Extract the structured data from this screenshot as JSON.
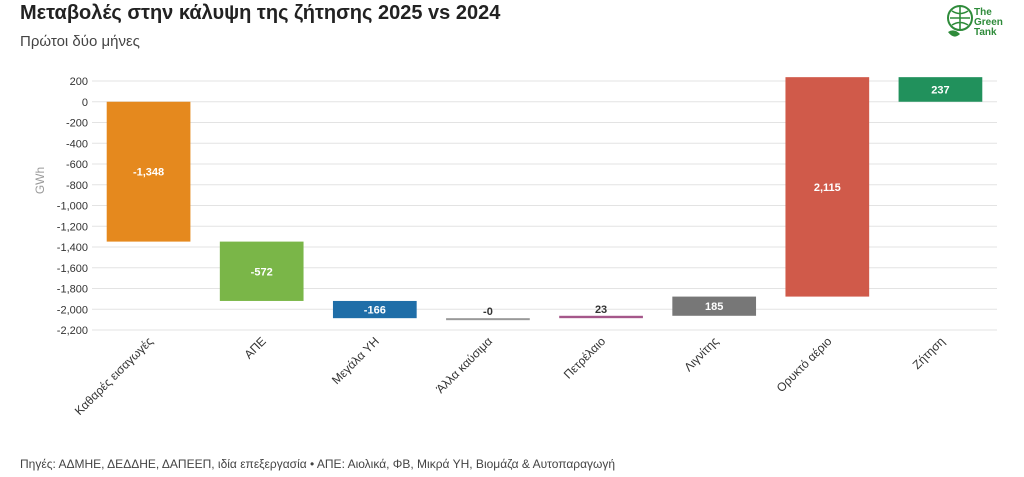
{
  "header": {
    "title": "Μεταβολές στην κάλυψη της ζήτησης 2025 vs 2024",
    "subtitle": "Πρώτοι δύο μήνες"
  },
  "logo": {
    "line1": "The",
    "line2": "Green",
    "line3": "Tank",
    "icon": "globe-leaf-icon",
    "color": "#2e8b3a"
  },
  "footer": {
    "source": "Πηγές: ΑΔΜΗΕ, ΔΕΔΔΗΕ, ΔΑΠΕΕΠ, ιδία επεξεργασία • ΑΠΕ: Αιολικά, ΦΒ, Μικρά ΥΗ, Βιομάζα & Αυτοπαραγωγή"
  },
  "chart_data": {
    "type": "bar",
    "subtype": "waterfall",
    "ylabel": "GWh",
    "ylim": [
      -2200,
      200
    ],
    "yticks": [
      200,
      0,
      -200,
      -400,
      -600,
      -800,
      -1000,
      -1200,
      -1400,
      -1600,
      -1800,
      -2000,
      -2200
    ],
    "ytick_labels": [
      "200",
      "0",
      "-200",
      "-400",
      "-600",
      "-800",
      "-1,000",
      "-1,200",
      "-1,400",
      "-1,600",
      "-1,800",
      "-2,000",
      "-2,200"
    ],
    "grid": true,
    "categories": [
      "Καθαρές εισαγωγές",
      "ΑΠΕ",
      "Μεγάλα ΥΗ",
      "Άλλα καύσιμα",
      "Πετρέλαιο",
      "Λιγνίτης",
      "Ορυκτό αέριο",
      "Ζήτηση"
    ],
    "bars": [
      {
        "start": 0,
        "end": -1348,
        "label": "-1,348",
        "color": "#e5891e",
        "label_color": "#ffffff"
      },
      {
        "start": -1348,
        "end": -1920,
        "label": "-572",
        "color": "#7ab648",
        "label_color": "#ffffff"
      },
      {
        "start": -1920,
        "end": -2086,
        "label": "-166",
        "color": "#1f6ea8",
        "label_color": "#ffffff"
      },
      {
        "start": -2086,
        "end": -2086,
        "label": "-0",
        "color": "#999999",
        "label_color": "#333333"
      },
      {
        "start": -2086,
        "end": -2063,
        "label": "23",
        "color": "#a5578a",
        "label_color": "#333333"
      },
      {
        "start": -2063,
        "end": -1878,
        "label": "185",
        "color": "#777777",
        "label_color": "#ffffff"
      },
      {
        "start": -1878,
        "end": 237,
        "label": "2,115",
        "color": "#d05a4a",
        "label_color": "#ffffff"
      },
      {
        "start": 0,
        "end": 237,
        "label": "237",
        "color": "#21915c",
        "label_color": "#ffffff"
      }
    ]
  }
}
